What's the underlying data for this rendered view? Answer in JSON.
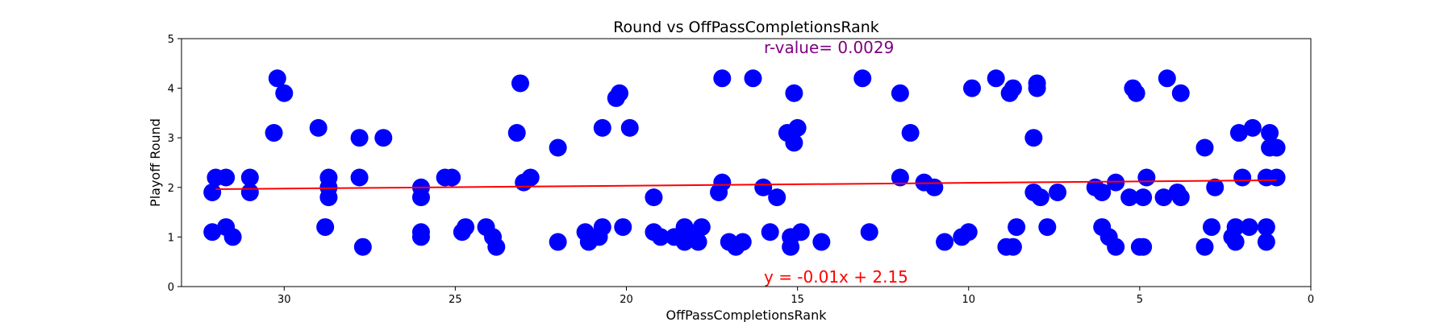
{
  "chart_data": {
    "type": "scatter",
    "title": "Round vs OffPassCompletionsRank",
    "xlabel": "OffPassCompletionsRank",
    "ylabel": "Playoff Round",
    "xlim": [
      33,
      0
    ],
    "ylim": [
      0,
      5
    ],
    "x_ticks": [
      30,
      25,
      20,
      15,
      10,
      5,
      0
    ],
    "y_ticks": [
      0,
      1,
      2,
      3,
      4,
      5
    ],
    "grid": false,
    "legend": "none",
    "colors": {
      "points": "#0000ff",
      "fit_line": "#ff0000",
      "r_value": "#800080",
      "equation": "#ff0000"
    },
    "annotations": {
      "r_value": "r-value= 0.0029",
      "equation": "y = -0.01x + 2.15"
    },
    "fit_line": {
      "slope": -0.0058,
      "intercept": 2.15,
      "x_range": [
        32,
        1
      ]
    },
    "points": [
      [
        32.1,
        1.9
      ],
      [
        32,
        2.2
      ],
      [
        31.7,
        2.2
      ],
      [
        32.1,
        1.1
      ],
      [
        31.7,
        1.2
      ],
      [
        31.5,
        1.0
      ],
      [
        31,
        2.2
      ],
      [
        31,
        1.9
      ],
      [
        30.3,
        3.1
      ],
      [
        30.2,
        4.2
      ],
      [
        30,
        3.9
      ],
      [
        29,
        3.2
      ],
      [
        28.8,
        1.2
      ],
      [
        28.7,
        2.2
      ],
      [
        28.7,
        2.0
      ],
      [
        28.7,
        1.8
      ],
      [
        27.8,
        3.0
      ],
      [
        27.8,
        2.2
      ],
      [
        27.7,
        0.8
      ],
      [
        27.1,
        3.0
      ],
      [
        26,
        2.0
      ],
      [
        26,
        1.8
      ],
      [
        26,
        1.1
      ],
      [
        26,
        1.0
      ],
      [
        25.3,
        2.2
      ],
      [
        25.1,
        2.2
      ],
      [
        24.8,
        1.1
      ],
      [
        24.7,
        1.2
      ],
      [
        24.1,
        1.2
      ],
      [
        23.9,
        1.0
      ],
      [
        23.8,
        0.8
      ],
      [
        23.2,
        3.1
      ],
      [
        23.1,
        4.1
      ],
      [
        23,
        2.1
      ],
      [
        22.8,
        2.2
      ],
      [
        22,
        2.8
      ],
      [
        22,
        0.9
      ],
      [
        21.2,
        1.1
      ],
      [
        21.1,
        0.9
      ],
      [
        20.8,
        1.0
      ],
      [
        20.7,
        1.2
      ],
      [
        20.7,
        3.2
      ],
      [
        20.3,
        3.8
      ],
      [
        20.2,
        3.9
      ],
      [
        20.1,
        1.2
      ],
      [
        19.9,
        3.2
      ],
      [
        19.2,
        1.8
      ],
      [
        19.2,
        1.1
      ],
      [
        19,
        1.0
      ],
      [
        18.6,
        1.0
      ],
      [
        18.3,
        1.2
      ],
      [
        18.3,
        0.9
      ],
      [
        17.9,
        0.9
      ],
      [
        17.8,
        1.2
      ],
      [
        18.2,
        1.0
      ],
      [
        17.3,
        1.9
      ],
      [
        17.2,
        4.2
      ],
      [
        17.2,
        2.1
      ],
      [
        17.0,
        0.9
      ],
      [
        16.8,
        0.8
      ],
      [
        16.6,
        0.9
      ],
      [
        16.3,
        4.2
      ],
      [
        16.0,
        2.0
      ],
      [
        15.8,
        1.1
      ],
      [
        15.6,
        1.8
      ],
      [
        15.3,
        3.1
      ],
      [
        15.2,
        1.0
      ],
      [
        15.1,
        2.9
      ],
      [
        15.1,
        3.9
      ],
      [
        15.0,
        3.2
      ],
      [
        15.2,
        0.8
      ],
      [
        14.9,
        1.1
      ],
      [
        14.3,
        0.9
      ],
      [
        13.1,
        4.2
      ],
      [
        12.9,
        1.1
      ],
      [
        12.0,
        2.2
      ],
      [
        12.0,
        3.9
      ],
      [
        11.7,
        3.1
      ],
      [
        11.3,
        2.1
      ],
      [
        11.0,
        2.0
      ],
      [
        10.7,
        0.9
      ],
      [
        10.2,
        1.0
      ],
      [
        10,
        1.1
      ],
      [
        9.9,
        4.0
      ],
      [
        9.2,
        4.2
      ],
      [
        8.9,
        0.8
      ],
      [
        8.7,
        0.8
      ],
      [
        8.8,
        3.9
      ],
      [
        8.7,
        4.0
      ],
      [
        8.6,
        1.2
      ],
      [
        8.1,
        3.0
      ],
      [
        8.1,
        1.9
      ],
      [
        8.0,
        4.1
      ],
      [
        8.0,
        4.0
      ],
      [
        7.9,
        1.8
      ],
      [
        7.7,
        1.2
      ],
      [
        7.4,
        1.9
      ],
      [
        6.3,
        2.0
      ],
      [
        6.1,
        1.9
      ],
      [
        6.1,
        1.2
      ],
      [
        5.9,
        1.0
      ],
      [
        5.7,
        2.1
      ],
      [
        5.7,
        0.8
      ],
      [
        5.3,
        1.8
      ],
      [
        5.2,
        4.0
      ],
      [
        5.1,
        3.9
      ],
      [
        5.0,
        0.8
      ],
      [
        4.9,
        0.8
      ],
      [
        4.9,
        1.8
      ],
      [
        4.8,
        2.2
      ],
      [
        4.3,
        1.8
      ],
      [
        4.2,
        4.2
      ],
      [
        3.9,
        1.9
      ],
      [
        3.8,
        1.8
      ],
      [
        3.8,
        3.9
      ],
      [
        3.1,
        2.8
      ],
      [
        3.1,
        0.8
      ],
      [
        2.9,
        1.2
      ],
      [
        2.8,
        2.0
      ],
      [
        2.3,
        1.0
      ],
      [
        2.2,
        1.2
      ],
      [
        2.2,
        0.9
      ],
      [
        2.1,
        3.1
      ],
      [
        2.0,
        2.2
      ],
      [
        1.8,
        1.2
      ],
      [
        1.7,
        3.2
      ],
      [
        1.3,
        2.2
      ],
      [
        1.3,
        1.2
      ],
      [
        1.3,
        0.9
      ],
      [
        1.2,
        3.1
      ],
      [
        1.2,
        2.8
      ],
      [
        1.0,
        2.8
      ],
      [
        1.0,
        2.2
      ]
    ]
  }
}
